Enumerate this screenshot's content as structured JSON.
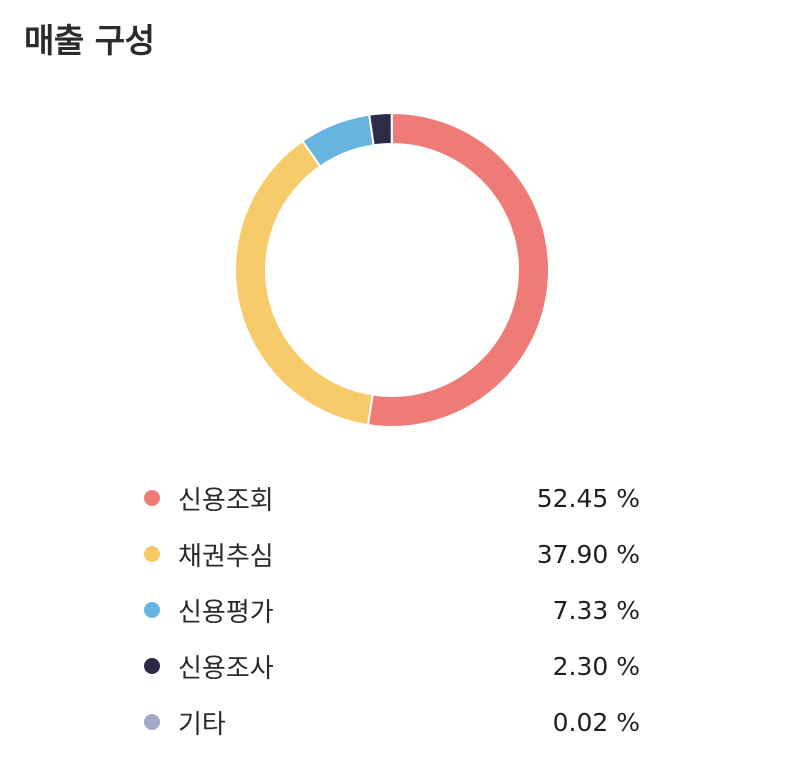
{
  "title": "매출 구성",
  "chart_data": {
    "type": "pie",
    "title": "매출 구성",
    "value_suffix": " %",
    "legend_position": "bottom",
    "categories": [
      "신용조회",
      "채권추심",
      "신용평가",
      "신용조사",
      "기타"
    ],
    "values": [
      52.45,
      37.9,
      7.33,
      2.3,
      0.02
    ],
    "labels": [
      "52.45 %",
      "37.90 %",
      "7.33 %",
      "2.30 %",
      "0.02 %"
    ],
    "colors": [
      "#ef7b76",
      "#f7cb69",
      "#66b5de",
      "#2d2b48",
      "#a3a9c6"
    ]
  }
}
